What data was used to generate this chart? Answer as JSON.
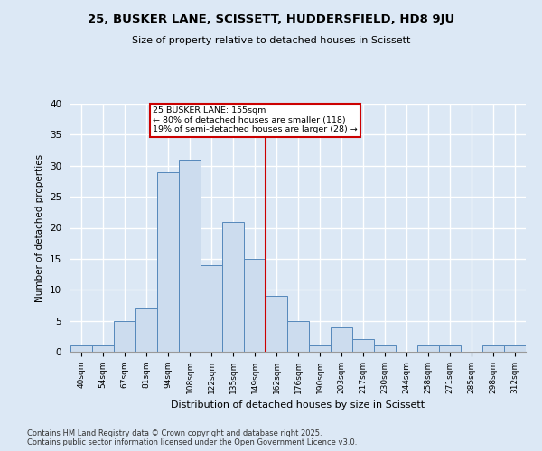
{
  "title": "25, BUSKER LANE, SCISSETT, HUDDERSFIELD, HD8 9JU",
  "subtitle": "Size of property relative to detached houses in Scissett",
  "xlabel": "Distribution of detached houses by size in Scissett",
  "ylabel": "Number of detached properties",
  "bin_labels": [
    "40sqm",
    "54sqm",
    "67sqm",
    "81sqm",
    "94sqm",
    "108sqm",
    "122sqm",
    "135sqm",
    "149sqm",
    "162sqm",
    "176sqm",
    "190sqm",
    "203sqm",
    "217sqm",
    "230sqm",
    "244sqm",
    "258sqm",
    "271sqm",
    "285sqm",
    "298sqm",
    "312sqm"
  ],
  "bar_heights": [
    1,
    1,
    5,
    7,
    29,
    31,
    14,
    21,
    15,
    9,
    5,
    1,
    4,
    2,
    1,
    0,
    1,
    1,
    0,
    1,
    1
  ],
  "bar_color": "#ccdcee",
  "bar_edge_color": "#5588bb",
  "vline_color": "#cc0000",
  "annotation_title": "25 BUSKER LANE: 155sqm",
  "annotation_line1": "← 80% of detached houses are smaller (118)",
  "annotation_line2": "19% of semi-detached houses are larger (28) →",
  "annotation_box_color": "#cc0000",
  "footer_line1": "Contains HM Land Registry data © Crown copyright and database right 2025.",
  "footer_line2": "Contains public sector information licensed under the Open Government Licence v3.0.",
  "ylim": [
    0,
    40
  ],
  "yticks": [
    0,
    5,
    10,
    15,
    20,
    25,
    30,
    35,
    40
  ],
  "fig_bg_color": "#dce8f5",
  "plot_bg_color": "#dce8f5",
  "grid_color": "#ffffff"
}
